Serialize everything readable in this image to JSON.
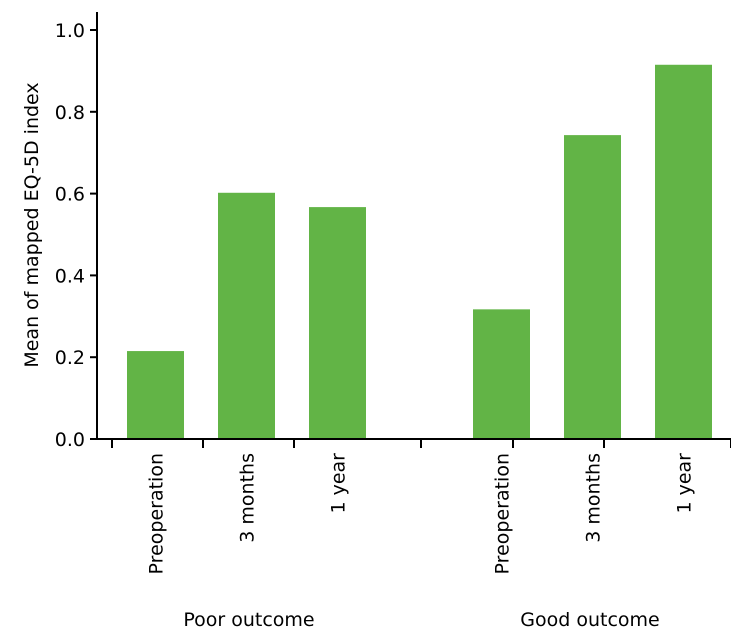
{
  "chart_data": {
    "type": "bar",
    "ylabel": "Mean of mapped EQ-5D index",
    "ylim": [
      0,
      1.0
    ],
    "yticks": [
      "0.0",
      "0.2",
      "0.4",
      "0.6",
      "0.8",
      "1.0"
    ],
    "grid": false,
    "bar_color": "#62b446",
    "groups": [
      {
        "name": "Poor outcome",
        "categories": [
          "Preoperation",
          "3 months",
          "1 year"
        ],
        "values": [
          0.215,
          0.602,
          0.567
        ]
      },
      {
        "name": "Good outcome",
        "categories": [
          "Preoperation",
          "3 months",
          "1 year"
        ],
        "values": [
          0.317,
          0.743,
          0.915
        ]
      }
    ]
  }
}
